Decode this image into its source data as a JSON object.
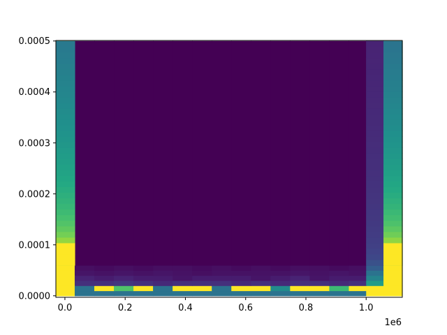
{
  "chart_data": {
    "type": "heatmap",
    "title": "",
    "xlabel": "",
    "ylabel": "",
    "colormap": "viridis",
    "x_offset_label": "1e6",
    "xlim": [
      -30000,
      1120000
    ],
    "ylim": [
      -3e-06,
      0.000501
    ],
    "x_ticks": [
      0,
      200000,
      400000,
      600000,
      800000,
      1000000
    ],
    "x_tick_labels": [
      "0.0",
      "0.2",
      "0.4",
      "0.6",
      "0.8",
      "1.0"
    ],
    "y_ticks": [
      0,
      0.0001,
      0.0002,
      0.0003,
      0.0004,
      0.0005
    ],
    "y_tick_labels": [
      "0.0000",
      "0.0001",
      "0.0002",
      "0.0003",
      "0.0004",
      "0.0005"
    ],
    "x_edges": [
      -30000,
      32500,
      97500,
      162500,
      227500,
      292500,
      357500,
      422500,
      487500,
      552500,
      617500,
      682500,
      747500,
      812500,
      877500,
      942500,
      1000000,
      1057500,
      1120000
    ],
    "y_edges": [
      0,
      1e-05,
      2e-05,
      3e-05,
      4e-05,
      5e-05,
      6e-05,
      0.0005
    ],
    "values": [
      [
        1.0,
        0.38,
        0.38,
        0.38,
        0.38,
        0.38,
        0.38,
        0.38,
        0.38,
        0.38,
        0.38,
        0.38,
        0.38,
        0.38,
        0.38,
        0.38,
        1.0,
        1.0
      ],
      [
        1.0,
        0.38,
        1.0,
        0.72,
        1.0,
        0.38,
        1.0,
        1.0,
        0.38,
        1.0,
        1.0,
        0.48,
        1.0,
        1.0,
        0.68,
        1.0,
        1.0,
        1.0
      ],
      [
        1.0,
        0.14,
        0.14,
        0.16,
        0.14,
        0.12,
        0.14,
        0.14,
        0.14,
        0.12,
        0.14,
        0.12,
        0.14,
        0.14,
        0.12,
        0.14,
        0.55,
        1.0
      ],
      [
        1.0,
        0.1,
        0.08,
        0.1,
        0.08,
        0.08,
        0.06,
        0.08,
        0.08,
        0.08,
        0.06,
        0.08,
        0.1,
        0.06,
        0.08,
        0.08,
        0.45,
        1.0
      ],
      [
        1.0,
        0.06,
        0.05,
        0.06,
        0.05,
        0.06,
        0.05,
        0.04,
        0.05,
        0.05,
        0.05,
        0.05,
        0.06,
        0.05,
        0.06,
        0.05,
        0.38,
        1.0
      ],
      [
        1.0,
        0.04,
        0.03,
        0.04,
        0.03,
        0.04,
        0.04,
        0.03,
        0.04,
        0.03,
        0.04,
        0.03,
        0.04,
        0.04,
        0.03,
        0.04,
        0.3,
        1.0
      ],
      [
        0.85,
        0.0,
        0.0,
        0.0,
        0.0,
        0.0,
        0.0,
        0.0,
        0.0,
        0.0,
        0.0,
        0.0,
        0.0,
        0.0,
        0.0,
        0.0,
        0.12,
        0.75
      ]
    ],
    "column_profiles": {
      "left": {
        "bottom": 1.0,
        "knee": 0.0001,
        "top": 0.4
      },
      "right_outer": {
        "bottom": 1.0,
        "knee": 0.0001,
        "top": 0.38
      },
      "right_inner": {
        "bottom": 0.25,
        "knee": 7e-05,
        "top": 0.1
      }
    },
    "grid": false,
    "legend": "none"
  }
}
